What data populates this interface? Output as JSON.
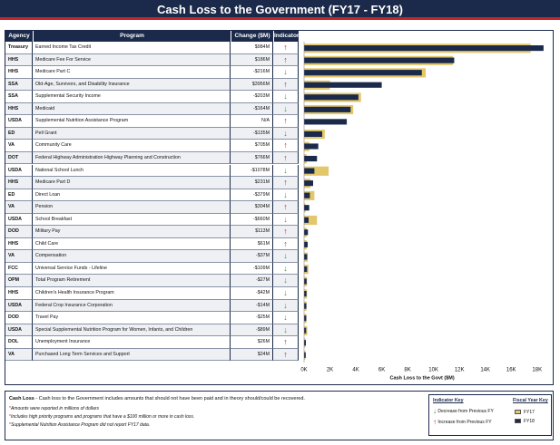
{
  "title": "Cash Loss to the Government (FY17 - FY18)",
  "table": {
    "headers": {
      "agency": "Agency",
      "program": "Program",
      "change": "Change ($M)",
      "indicator": "Indicator"
    }
  },
  "indicator_glyphs": {
    "up": "↑",
    "down": "↓"
  },
  "colors": {
    "navy": "#1b2a4a",
    "gold": "#e2c76b",
    "red": "#c0272d",
    "green": "#3a9a3a"
  },
  "chart_data": {
    "type": "bar",
    "orientation": "horizontal",
    "xlabel": "Cash Loss to the Govt ($M)",
    "xlim": [
      0,
      19000
    ],
    "xticks": [
      0,
      2000,
      4000,
      6000,
      8000,
      10000,
      12000,
      14000,
      16000,
      18000
    ],
    "xtick_labels": [
      "0K",
      "2K",
      "4K",
      "6K",
      "8K",
      "10K",
      "12K",
      "14K",
      "16K",
      "18K"
    ],
    "grid": false,
    "series": [
      {
        "name": "FY17",
        "color": "#e2c76b"
      },
      {
        "name": "FY18",
        "color": "#1b2a4a"
      }
    ],
    "rows": [
      {
        "agency": "Treasury",
        "program": "Earned Income Tax Credit",
        "change": "$984M",
        "direction": "up",
        "fy17": 17500,
        "fy18": 18500
      },
      {
        "agency": "HHS",
        "program": "Medicare Fee For Service",
        "change": "$186M",
        "direction": "up",
        "fy17": 11500,
        "fy18": 11600
      },
      {
        "agency": "HHS",
        "program": "Medicare Part C",
        "change": "-$216M",
        "direction": "down",
        "fy17": 9400,
        "fy18": 9100
      },
      {
        "agency": "SSA",
        "program": "Old-Age, Survivors, and Disability Insurance",
        "change": "$3956M",
        "direction": "up",
        "fy17": 2000,
        "fy18": 6000
      },
      {
        "agency": "SSA",
        "program": "Supplemental Security Income",
        "change": "-$203M",
        "direction": "down",
        "fy17": 4400,
        "fy18": 4200
      },
      {
        "agency": "HHS",
        "program": "Medicaid",
        "change": "-$164M",
        "direction": "down",
        "fy17": 3800,
        "fy18": 3600
      },
      {
        "agency": "USDA",
        "program": "Supplemental Nutrition Assistance Program",
        "change": "N/A",
        "direction": "up",
        "fy17": 0,
        "fy18": 3300
      },
      {
        "agency": "ED",
        "program": "Pell Grant",
        "change": "-$135M",
        "direction": "down",
        "fy17": 1600,
        "fy18": 1400
      },
      {
        "agency": "VA",
        "program": "Community Care",
        "change": "$705M",
        "direction": "up",
        "fy17": 400,
        "fy18": 1100
      },
      {
        "agency": "DOT",
        "program": "Federal Highway Administration Highway Planning and Construction",
        "change": "$766M",
        "direction": "up",
        "fy17": 200,
        "fy18": 1000
      },
      {
        "agency": "USDA",
        "program": "National School Lunch",
        "change": "-$1078M",
        "direction": "down",
        "fy17": 1900,
        "fy18": 800
      },
      {
        "agency": "HHS",
        "program": "Medicare Part D",
        "change": "$231M",
        "direction": "up",
        "fy17": 500,
        "fy18": 700
      },
      {
        "agency": "ED",
        "program": "Direct Loan",
        "change": "-$379M",
        "direction": "down",
        "fy17": 800,
        "fy18": 450
      },
      {
        "agency": "VA",
        "program": "Pension",
        "change": "$304M",
        "direction": "up",
        "fy17": 100,
        "fy18": 400
      },
      {
        "agency": "USDA",
        "program": "School Breakfast",
        "change": "-$660M",
        "direction": "down",
        "fy17": 1000,
        "fy18": 350
      },
      {
        "agency": "DOD",
        "program": "Military Pay",
        "change": "$113M",
        "direction": "up",
        "fy17": 200,
        "fy18": 300
      },
      {
        "agency": "HHS",
        "program": "Child Care",
        "change": "$61M",
        "direction": "up",
        "fy17": 200,
        "fy18": 280
      },
      {
        "agency": "VA",
        "program": "Compensation",
        "change": "-$37M",
        "direction": "down",
        "fy17": 280,
        "fy18": 240
      },
      {
        "agency": "FCC",
        "program": "Universal Service Funds - Lifeline",
        "change": "-$109M",
        "direction": "down",
        "fy17": 340,
        "fy18": 230
      },
      {
        "agency": "OPM",
        "program": "Total Program Retirement",
        "change": "-$27M",
        "direction": "down",
        "fy17": 230,
        "fy18": 200
      },
      {
        "agency": "HHS",
        "program": "Children's Health Insurance Program",
        "change": "-$42M",
        "direction": "down",
        "fy17": 230,
        "fy18": 190
      },
      {
        "agency": "USDA",
        "program": "Federal Crop Insurance Corporation",
        "change": "-$14M",
        "direction": "down",
        "fy17": 190,
        "fy18": 180
      },
      {
        "agency": "DOD",
        "program": "Travel Pay",
        "change": "-$25M",
        "direction": "down",
        "fy17": 190,
        "fy18": 170
      },
      {
        "agency": "USDA",
        "program": "Special Supplemental Nutrition Program for Women, Infants, and Children",
        "change": "-$89M",
        "direction": "down",
        "fy17": 250,
        "fy18": 160
      },
      {
        "agency": "DOL",
        "program": "Unemployment Insurance",
        "change": "$26M",
        "direction": "up",
        "fy17": 110,
        "fy18": 140
      },
      {
        "agency": "VA",
        "program": "Purchased Long Term Services and Support",
        "change": "$24M",
        "direction": "up",
        "fy17": 100,
        "fy18": 130
      }
    ]
  },
  "footer": {
    "main_label": "Cash Loss",
    "main_text": " - Cash loss to the Government includes amounts that should not have been paid and in theory should/could be recovered.",
    "notes": [
      "Amounts were reported in millions of dollars",
      "Includes high priority programs and programs that have a $100 million or more in cash loss.",
      "Supplemental Nutrition Assistance Program did not report FY17 data."
    ],
    "note_marker": "*",
    "indicator_key": {
      "title": "Indicator Key",
      "decrease": "Decrease from Previous FY",
      "increase": "Increase from Previous FY"
    },
    "fy_key": {
      "title": "Fiscal Year Key",
      "fy17": "FY17",
      "fy18": "FY18"
    }
  }
}
